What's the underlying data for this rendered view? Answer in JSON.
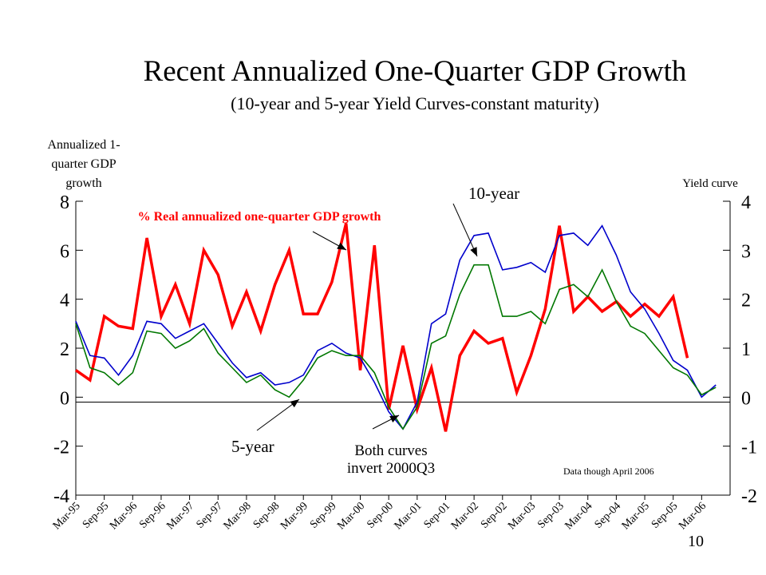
{
  "chart_data": {
    "type": "line",
    "title": "Recent Annualized One-Quarter GDP Growth",
    "subtitle": "(10-year and 5-year Yield Curves-constant maturity)",
    "ylabel_left": "Annualized 1-quarter GDP growth",
    "ylabel_right": "Yield curve",
    "ylim_left": [
      -4,
      8
    ],
    "ylim_right": [
      -2,
      4
    ],
    "yticks_left": [
      "-4",
      "-2",
      "0",
      "2",
      "4",
      "6",
      "8"
    ],
    "yticks_right": [
      "-2",
      "-1",
      "0",
      "1",
      "2",
      "3",
      "4"
    ],
    "categories": [
      "Mar-95",
      "Sep-95",
      "Mar-96",
      "Sep-96",
      "Mar-97",
      "Sep-97",
      "Mar-98",
      "Sep-98",
      "Mar-99",
      "Sep-99",
      "Mar-00",
      "Sep-00",
      "Mar-01",
      "Sep-01",
      "Mar-02",
      "Sep-02",
      "Mar-03",
      "Sep-03",
      "Mar-04",
      "Sep-04",
      "Mar-05",
      "Sep-05",
      "Mar-06"
    ],
    "x": [
      1995.0,
      1995.25,
      1995.5,
      1995.75,
      1996.0,
      1996.25,
      1996.5,
      1996.75,
      1997.0,
      1997.25,
      1997.5,
      1997.75,
      1998.0,
      1998.25,
      1998.5,
      1998.75,
      1999.0,
      1999.25,
      1999.5,
      1999.75,
      2000.0,
      2000.25,
      2000.5,
      2000.75,
      2001.0,
      2001.25,
      2001.5,
      2001.75,
      2002.0,
      2002.25,
      2002.5,
      2002.75,
      2003.0,
      2003.25,
      2003.5,
      2003.75,
      2004.0,
      2004.25,
      2004.5,
      2004.75,
      2005.0,
      2005.25,
      2005.5,
      2005.75,
      2006.0,
      2006.25
    ],
    "series": [
      {
        "name": "% Real annualized one-quarter GDP growth",
        "axis": "left",
        "color": "#ff0000",
        "values": [
          1.1,
          0.7,
          3.3,
          2.9,
          2.8,
          6.5,
          3.3,
          4.6,
          3.0,
          6.0,
          5.0,
          2.9,
          4.3,
          2.7,
          4.6,
          6.0,
          3.4,
          3.4,
          4.7,
          7.1,
          1.1,
          6.2,
          -0.5,
          2.1,
          -0.5,
          1.2,
          -1.4,
          1.7,
          2.7,
          2.2,
          2.4,
          0.2,
          1.7,
          3.6,
          7.0,
          3.5,
          4.1,
          3.5,
          3.9,
          3.3,
          3.8,
          3.3,
          4.1,
          1.6,
          null,
          null
        ]
      },
      {
        "name": "10-year",
        "axis": "right",
        "color": "#0000cc",
        "values": [
          1.55,
          0.85,
          0.8,
          0.45,
          0.85,
          1.55,
          1.5,
          1.2,
          1.35,
          1.5,
          1.1,
          0.7,
          0.4,
          0.5,
          0.25,
          0.3,
          0.45,
          0.95,
          1.1,
          0.9,
          0.8,
          0.3,
          -0.3,
          -0.65,
          -0.1,
          1.5,
          1.7,
          2.8,
          3.3,
          3.35,
          2.6,
          2.65,
          2.75,
          2.55,
          3.3,
          3.35,
          3.1,
          3.5,
          2.9,
          2.15,
          1.8,
          1.3,
          0.75,
          0.55,
          0.0,
          0.25
        ]
      },
      {
        "name": "5-year",
        "axis": "right",
        "color": "#007700",
        "values": [
          1.5,
          0.6,
          0.5,
          0.25,
          0.5,
          1.35,
          1.3,
          1.0,
          1.15,
          1.4,
          0.9,
          0.6,
          0.3,
          0.45,
          0.15,
          0.0,
          0.35,
          0.8,
          0.95,
          0.85,
          0.85,
          0.5,
          -0.2,
          -0.65,
          -0.2,
          1.1,
          1.25,
          2.1,
          2.7,
          2.7,
          1.65,
          1.65,
          1.75,
          1.5,
          2.2,
          2.3,
          2.05,
          2.6,
          1.95,
          1.45,
          1.3,
          0.95,
          0.6,
          0.45,
          0.05,
          0.2
        ]
      }
    ],
    "annotations": {
      "gdp_label": "% Real annualized one-quarter GDP growth",
      "label_10yr": "10-year",
      "label_5yr": "5-year",
      "inversion_line1": "Both curves",
      "inversion_line2": "invert 2000Q3",
      "data_note": "Data though April 2006",
      "page_number": "10"
    },
    "grid": false,
    "legend": "none"
  }
}
